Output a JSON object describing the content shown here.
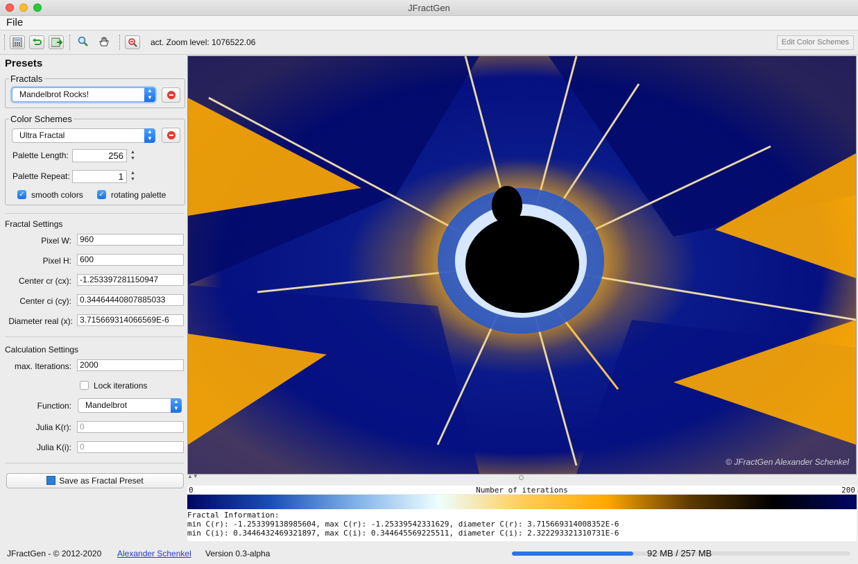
{
  "window": {
    "title": "JFractGen"
  },
  "menu": {
    "file": "File"
  },
  "toolbar": {
    "zoom_text": "act. Zoom level: 1076522.06",
    "edit_color_schemes": "Edit Color Schemes",
    "icons": [
      "calculator-icon",
      "undo-icon",
      "export-icon",
      "zoom-icon",
      "pan-hand-icon",
      "reset-zoom-icon"
    ]
  },
  "presets": {
    "title": "Presets",
    "fractals_legend": "Fractals",
    "fractal_selected": "Mandelbrot Rocks!",
    "colors_legend": "Color Schemes",
    "color_selected": "Ultra Fractal",
    "palette_length_label": "Palette Length:",
    "palette_length": "256",
    "palette_repeat_label": "Palette Repeat:",
    "palette_repeat": "1",
    "smooth_label": "smooth colors",
    "smooth_checked": true,
    "rotating_label": "rotating palette",
    "rotating_checked": true
  },
  "fractal_settings": {
    "title": "Fractal Settings",
    "pixel_w_label": "Pixel W:",
    "pixel_w": "960",
    "pixel_h_label": "Pixel H:",
    "pixel_h": "600",
    "cx_label": "Center cr (cx):",
    "cx": "-1.253397281150947",
    "cy_label": "Center ci (cy):",
    "cy": "0.34464440807885033",
    "diam_label": "Diameter real (x):",
    "diam": "3.715669314066569E-6"
  },
  "calc_settings": {
    "title": "Calculation Settings",
    "max_iter_label": "max. Iterations:",
    "max_iter": "2000",
    "lock_label": "Lock iterations",
    "lock_checked": false,
    "function_label": "Function:",
    "function": "Mandelbrot",
    "julia_kr_label": "Julia K(r):",
    "julia_kr": "0",
    "julia_ki_label": "Julia K(i):",
    "julia_ki": "0"
  },
  "save_button": "Save as Fractal Preset",
  "view": {
    "copyright": "© JFractGen Alexander Schenkel"
  },
  "colorbar": {
    "min": "0",
    "label": "Number of iterations",
    "max": "200",
    "stops": [
      "#000763",
      "#1b4fb5",
      "#7fb0e8",
      "#edffff",
      "#ffcd5a",
      "#ffaa00",
      "#5e3a00",
      "#000000",
      "#000763"
    ]
  },
  "info": {
    "heading": "Fractal Information:",
    "line1": "min C(r): -1.253399138985604, max C(r): -1.25339542331629, diameter C(r): 3.715669314008352E-6",
    "line2": "min C(i): 0.3446432469321897, max C(i): 0.344645569225511, diameter C(i): 2.322293321310731E-6"
  },
  "status": {
    "copyright": "JFractGen - © 2012-2020",
    "author": "Alexander Schenkel",
    "version": "Version 0.3-alpha",
    "memory": "92 MB / 257 MB",
    "memory_fraction": 0.358
  },
  "colors": {
    "accent": "#2b73e6",
    "fractal_dark": "#000763",
    "fractal_gold": "#ffaa00"
  }
}
